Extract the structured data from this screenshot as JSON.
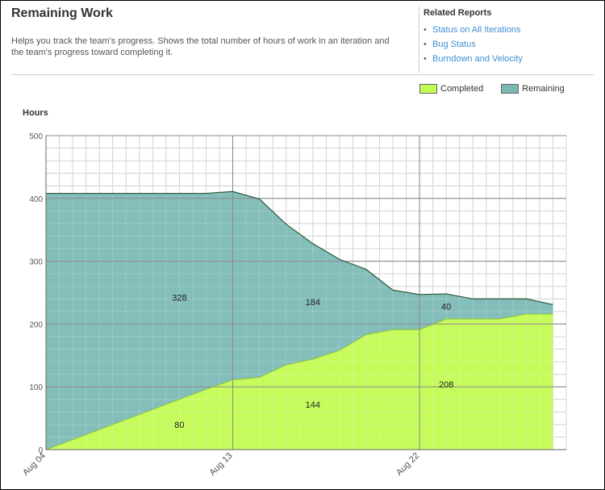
{
  "header": {
    "title": "Remaining Work",
    "description": "Helps you track the team's progress. Shows the total number of hours of work in an iteration and the team's progress toward completing it."
  },
  "related_reports": {
    "title": "Related Reports",
    "items": [
      {
        "label": "Status on All Iterations"
      },
      {
        "label": "Bug Status"
      },
      {
        "label": "Burndown and Velocity"
      }
    ]
  },
  "colors": {
    "completed": "#c3fb53",
    "remaining": "#7ab8b4",
    "remaining_line": "#2a5a3a",
    "completed_line": "#8ec43a",
    "grid": "#c8c8c8",
    "grid_major": "#888888"
  },
  "legend": {
    "completed": "Completed",
    "remaining": "Remaining"
  },
  "chart_data": {
    "type": "area",
    "ylabel": "Hours",
    "ylim": [
      0,
      500
    ],
    "y_ticks": [
      0,
      100,
      200,
      300,
      400,
      500
    ],
    "y_tick_labels": [
      "0",
      "100",
      "200",
      "300",
      "400",
      "500"
    ],
    "x_tick_labels": [
      "Aug 04",
      "Aug 13",
      "Aug 22"
    ],
    "x_tick_index": [
      0,
      7,
      14
    ],
    "x_points": 19.5,
    "series": [
      {
        "name": "Completed",
        "x": [
          0,
          1,
          2,
          3,
          4,
          5,
          6,
          7,
          8,
          9,
          10,
          11,
          12,
          13,
          14,
          15,
          16,
          17,
          18,
          19
        ],
        "values": [
          0,
          16,
          32,
          48,
          64,
          80,
          96,
          111,
          115,
          135,
          144,
          158,
          183,
          191,
          191,
          208,
          208,
          208,
          216,
          216
        ]
      },
      {
        "name": "Remaining",
        "x": [
          0,
          1,
          2,
          3,
          4,
          5,
          6,
          7,
          8,
          9,
          10,
          11,
          12,
          13,
          14,
          15,
          16,
          17,
          18,
          19
        ],
        "values": [
          408,
          392,
          376,
          360,
          344,
          328,
          312,
          300,
          284,
          224,
          184,
          145,
          104,
          63,
          56,
          40,
          32,
          32,
          24,
          15
        ]
      }
    ],
    "data_labels": [
      {
        "text": "328",
        "x": 5,
        "y": 242
      },
      {
        "text": "80",
        "x": 5,
        "y": 40
      },
      {
        "text": "184",
        "x": 10,
        "y": 235
      },
      {
        "text": "144",
        "x": 10,
        "y": 72
      },
      {
        "text": "40",
        "x": 15,
        "y": 228
      },
      {
        "text": "208",
        "x": 15,
        "y": 104
      }
    ],
    "grid": true
  }
}
